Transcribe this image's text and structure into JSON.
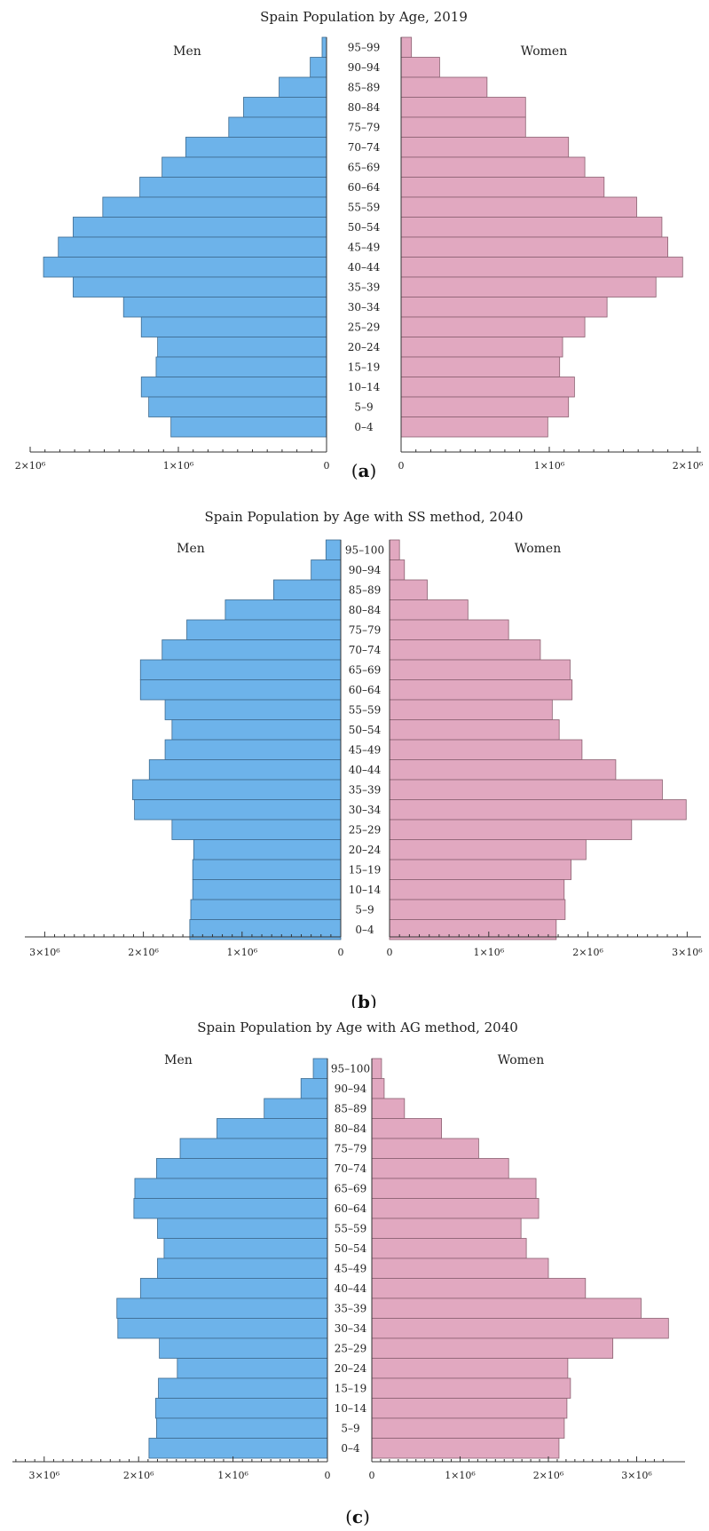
{
  "chart_data": [
    {
      "type": "bar",
      "orientation": "horizontal-pyramid",
      "title": "Spain Population by Age, 2019",
      "panel_label_letter": "a",
      "left_label": "Men",
      "right_label": "Women",
      "max_value": 2000000,
      "left_ticks": [
        {
          "value": 2000000,
          "label": "2×10⁶"
        },
        {
          "value": 1000000,
          "label": "1×10⁶"
        },
        {
          "value": 0,
          "label": "0"
        }
      ],
      "right_ticks": [
        {
          "value": 0,
          "label": "0"
        },
        {
          "value": 1000000,
          "label": "1×10⁶"
        },
        {
          "value": 2000000,
          "label": "2×10⁶"
        }
      ],
      "categories": [
        "95–99",
        "90–94",
        "85–89",
        "80–84",
        "75–79",
        "70–74",
        "65–69",
        "60–64",
        "55–59",
        "50–54",
        "45–49",
        "40–44",
        "35–39",
        "30–34",
        "25–29",
        "20–24",
        "15–19",
        "10–14",
        "5–9",
        "0–4"
      ],
      "series": [
        {
          "name": "Men",
          "values": [
            30000,
            110000,
            320000,
            560000,
            660000,
            950000,
            1110000,
            1260000,
            1510000,
            1710000,
            1810000,
            1910000,
            1710000,
            1370000,
            1250000,
            1140000,
            1150000,
            1250000,
            1200000,
            1050000
          ]
        },
        {
          "name": "Women",
          "values": [
            70000,
            260000,
            580000,
            840000,
            840000,
            1130000,
            1240000,
            1370000,
            1590000,
            1760000,
            1800000,
            1900000,
            1720000,
            1390000,
            1240000,
            1090000,
            1070000,
            1170000,
            1130000,
            990000
          ]
        }
      ]
    },
    {
      "type": "bar",
      "orientation": "horizontal-pyramid",
      "title": "Spain Population by Age with SS method, 2040",
      "panel_label_letter": "b",
      "left_label": "Men",
      "right_label": "Women",
      "max_value": 3000000,
      "left_ticks": [
        {
          "value": 3000000,
          "label": "3×10⁶"
        },
        {
          "value": 2000000,
          "label": "2×10⁶"
        },
        {
          "value": 1000000,
          "label": "1×10⁶"
        },
        {
          "value": 0,
          "label": "0"
        }
      ],
      "right_ticks": [
        {
          "value": 0,
          "label": "0"
        },
        {
          "value": 1000000,
          "label": "1×10⁶"
        },
        {
          "value": 2000000,
          "label": "2×10⁶"
        },
        {
          "value": 3000000,
          "label": "3×10⁶"
        }
      ],
      "categories": [
        "95–100",
        "90–94",
        "85–89",
        "80–84",
        "75–79",
        "70–74",
        "65–69",
        "60–64",
        "55–59",
        "50–54",
        "45–49",
        "40–44",
        "35–39",
        "30–34",
        "25–29",
        "20–24",
        "15–19",
        "10–14",
        "5–9",
        "0–4"
      ],
      "series": [
        {
          "name": "Men",
          "values": [
            150000,
            300000,
            680000,
            1170000,
            1560000,
            1810000,
            2030000,
            2030000,
            1780000,
            1710000,
            1780000,
            1940000,
            2110000,
            2090000,
            1710000,
            1490000,
            1500000,
            1500000,
            1520000,
            1530000
          ]
        },
        {
          "name": "Women",
          "values": [
            100000,
            150000,
            380000,
            790000,
            1200000,
            1520000,
            1820000,
            1840000,
            1640000,
            1710000,
            1940000,
            2280000,
            2750000,
            2990000,
            2440000,
            1980000,
            1830000,
            1760000,
            1770000,
            1680000
          ]
        }
      ]
    },
    {
      "type": "bar",
      "orientation": "horizontal-pyramid",
      "title": "Spain Population by Age with AG method, 2040",
      "panel_label_letter": "c",
      "left_label": "Men",
      "right_label": "Women",
      "max_value": 3300000,
      "left_ticks": [
        {
          "value": 3000000,
          "label": "3×10⁶"
        },
        {
          "value": 2000000,
          "label": "2×10⁶"
        },
        {
          "value": 1000000,
          "label": "1×10⁶"
        },
        {
          "value": 0,
          "label": "0"
        }
      ],
      "right_ticks": [
        {
          "value": 0,
          "label": "0"
        },
        {
          "value": 1000000,
          "label": "1×10⁶"
        },
        {
          "value": 2000000,
          "label": "2×10⁶"
        },
        {
          "value": 3000000,
          "label": "3×10⁶"
        }
      ],
      "categories": [
        "95–100",
        "90–94",
        "85–89",
        "80–84",
        "75–79",
        "70–74",
        "65–69",
        "60–64",
        "55–59",
        "50–54",
        "45–49",
        "40–44",
        "35–39",
        "30–34",
        "25–29",
        "20–24",
        "15–19",
        "10–14",
        "5–9",
        "0–4"
      ],
      "series": [
        {
          "name": "Men",
          "values": [
            150000,
            280000,
            670000,
            1170000,
            1560000,
            1810000,
            2040000,
            2050000,
            1800000,
            1730000,
            1800000,
            1980000,
            2230000,
            2220000,
            1780000,
            1590000,
            1790000,
            1820000,
            1810000,
            1890000
          ]
        },
        {
          "name": "Women",
          "values": [
            110000,
            140000,
            370000,
            790000,
            1210000,
            1550000,
            1860000,
            1890000,
            1690000,
            1750000,
            2000000,
            2420000,
            3050000,
            3360000,
            2730000,
            2220000,
            2250000,
            2210000,
            2180000,
            2120000
          ]
        }
      ]
    }
  ]
}
